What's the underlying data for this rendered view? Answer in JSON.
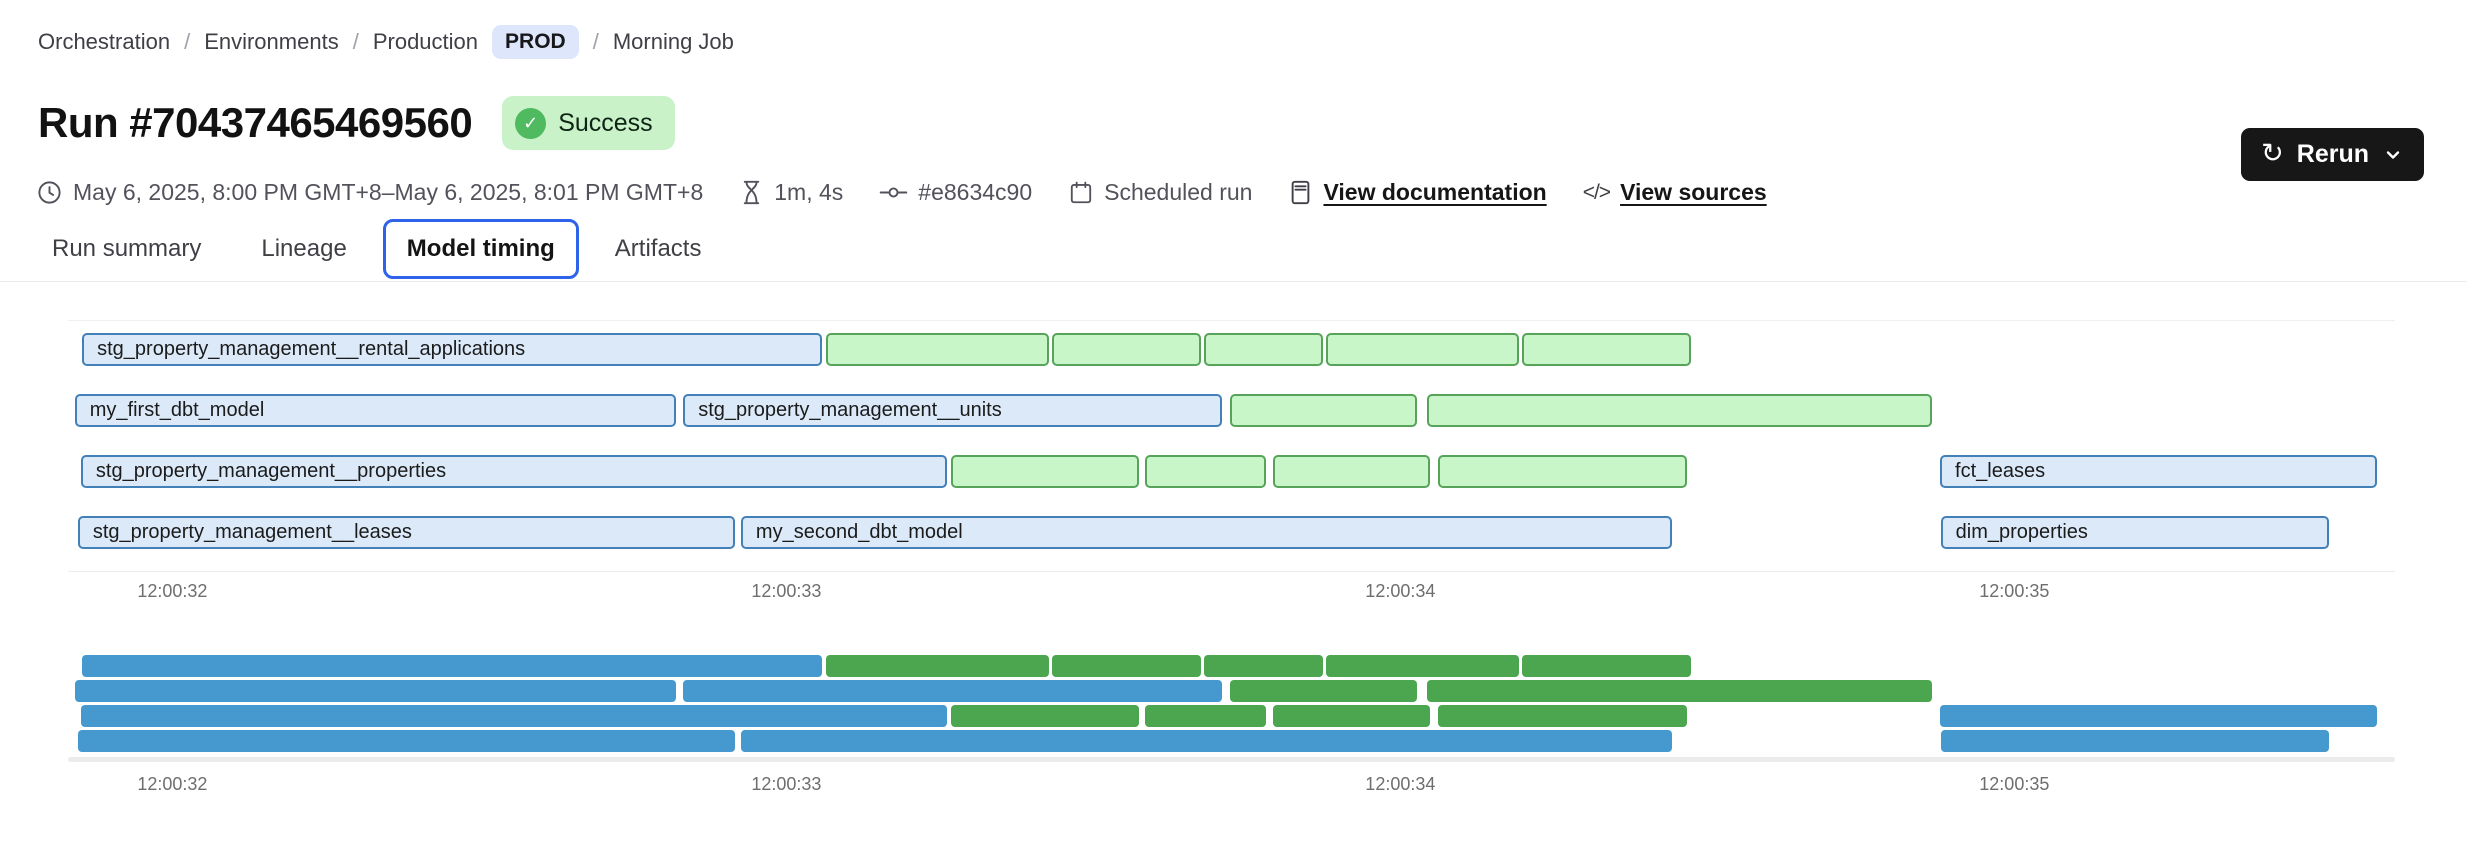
{
  "breadcrumb": {
    "separator": "/",
    "items": [
      "Orchestration",
      "Environments",
      "Production"
    ],
    "env_badge": "PROD",
    "current": "Morning Job"
  },
  "header": {
    "title": "Run #70437465469560",
    "status": "Success"
  },
  "toolbar": {
    "rerun_label": "Rerun"
  },
  "icons": {
    "check": "✓",
    "refresh": "↻",
    "code": "</>"
  },
  "meta": {
    "time_range": "May 6, 2025, 8:00 PM GMT+8–May 6, 2025, 8:01 PM GMT+8",
    "duration": "1m, 4s",
    "commit": "#e8634c90",
    "trigger": "Scheduled run",
    "doc_link": "View documentation",
    "sources_link": "View sources"
  },
  "tabs": [
    {
      "label": "Run summary",
      "selected": false
    },
    {
      "label": "Lineage",
      "selected": false
    },
    {
      "label": "Model timing",
      "selected": true
    },
    {
      "label": "Artifacts",
      "selected": false
    }
  ],
  "chart_data": {
    "type": "gantt",
    "title": "Model timing",
    "time_unit": "seconds after 12:00:00",
    "x_domain": [
      31.83,
      35.62
    ],
    "has_minimap": true,
    "ticks": [
      {
        "t": 32,
        "label": "12:00:32"
      },
      {
        "t": 33,
        "label": "12:00:33"
      },
      {
        "t": 34,
        "label": "12:00:34"
      },
      {
        "t": 35,
        "label": "12:00:35"
      }
    ],
    "palette": {
      "blue_fill": "#dbe9f9",
      "blue_border": "#4380b8",
      "green_fill": "#c9f6c9",
      "green_border": "#57a35a",
      "mini_blue": "#4599ce",
      "mini_green": "#4ca64f"
    },
    "rows": [
      {
        "bars": [
          {
            "label": "stg_property_management__rental_applications",
            "color": "blue",
            "start": 31.853,
            "end": 33.058
          },
          {
            "label": "",
            "color": "green",
            "start": 33.064,
            "end": 33.427
          },
          {
            "label": "",
            "color": "green",
            "start": 33.433,
            "end": 33.675
          },
          {
            "label": "",
            "color": "green",
            "start": 33.68,
            "end": 33.874
          },
          {
            "label": "",
            "color": "green",
            "start": 33.879,
            "end": 34.193
          },
          {
            "label": "",
            "color": "green",
            "start": 34.198,
            "end": 34.473
          }
        ]
      },
      {
        "bars": [
          {
            "label": "my_first_dbt_model",
            "color": "blue",
            "start": 31.841,
            "end": 32.82
          },
          {
            "label": "stg_property_management__units",
            "color": "blue",
            "start": 32.832,
            "end": 33.709
          },
          {
            "label": "",
            "color": "green",
            "start": 33.722,
            "end": 34.027
          },
          {
            "label": "",
            "color": "green",
            "start": 34.043,
            "end": 34.866
          }
        ]
      },
      {
        "bars": [
          {
            "label": "stg_property_management__properties",
            "color": "blue",
            "start": 31.851,
            "end": 33.261
          },
          {
            "label": "",
            "color": "green",
            "start": 33.268,
            "end": 33.574
          },
          {
            "label": "",
            "color": "green",
            "start": 33.584,
            "end": 33.781
          },
          {
            "label": "",
            "color": "green",
            "start": 33.792,
            "end": 34.048
          },
          {
            "label": "",
            "color": "green",
            "start": 34.061,
            "end": 34.467
          },
          {
            "label": "fct_leases",
            "color": "blue",
            "start": 34.879,
            "end": 35.59
          }
        ]
      },
      {
        "bars": [
          {
            "label": "stg_property_management__leases",
            "color": "blue",
            "start": 31.846,
            "end": 32.916
          },
          {
            "label": "my_second_dbt_model",
            "color": "blue",
            "start": 32.926,
            "end": 34.442
          },
          {
            "label": "dim_properties",
            "color": "blue",
            "start": 34.88,
            "end": 35.512
          }
        ]
      }
    ]
  }
}
